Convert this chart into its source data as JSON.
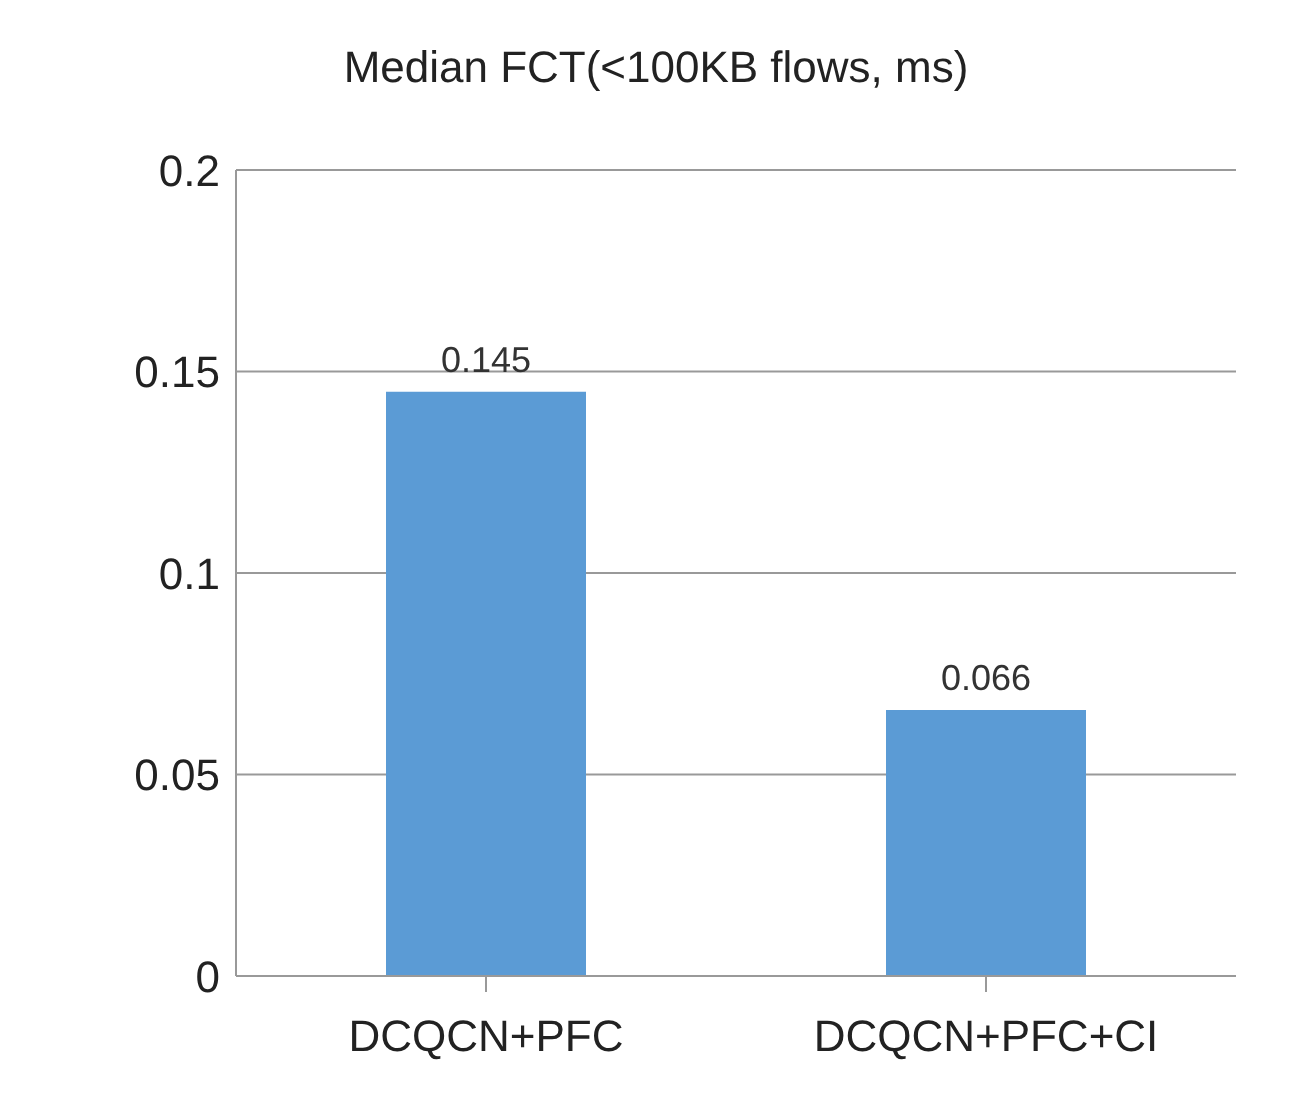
{
  "chart_data": {
    "type": "bar",
    "title": "Median FCT(<100KB flows, ms)",
    "categories": [
      "DCQCN+PFC",
      "DCQCN+PFC+CI"
    ],
    "values": [
      0.145,
      0.066
    ],
    "color": "#5b9bd5",
    "ylim": [
      0,
      0.2
    ],
    "yticks": [
      0,
      0.05,
      0.1,
      0.15,
      0.2
    ],
    "grid": "y",
    "data_labels": true,
    "legend": false
  }
}
